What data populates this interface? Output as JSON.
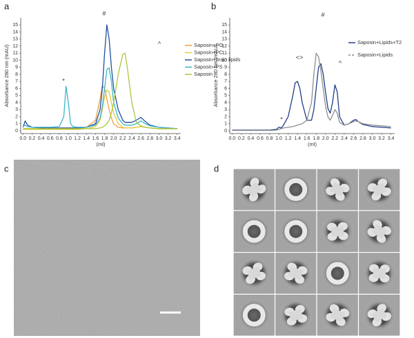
{
  "chart_data": [
    {
      "type": "line",
      "panel_label": "a",
      "ylabel": "Absorbance 280 nm (mAU)",
      "xlabel": "(ml)",
      "xlim": [
        -0.05,
        3.48
      ],
      "ylim": [
        0,
        15.6
      ],
      "xticks": [
        {
          "value": 0,
          "label": "0.0"
        },
        0.2,
        0.4,
        0.6,
        0.8,
        {
          "value": 1,
          "label": "1.0"
        },
        1.2,
        1.4,
        1.6,
        1.8,
        {
          "value": 2,
          "label": "2.0"
        },
        2.2,
        2.4,
        2.6,
        2.8,
        {
          "value": 3,
          "label": "3.0"
        },
        3.2,
        3.4
      ],
      "yticks": [
        0,
        1,
        2,
        3,
        4,
        5,
        6,
        7,
        8,
        9,
        10,
        11,
        12,
        13,
        14,
        15
      ],
      "annotations": [
        "*",
        "#",
        "^"
      ],
      "x": [
        0,
        0.05,
        0.1,
        0.2,
        0.4,
        0.6,
        0.8,
        0.9,
        0.95,
        1.0,
        1.05,
        1.1,
        1.2,
        1.4,
        1.6,
        1.7,
        1.75,
        1.8,
        1.85,
        1.9,
        1.95,
        2.0,
        2.1,
        2.2,
        2.25,
        2.3,
        2.4,
        2.5,
        2.6,
        2.7,
        2.8,
        3.0,
        3.2,
        3.4
      ],
      "series": [
        {
          "name": "Saposin+PG",
          "color": "#f0a040",
          "values": [
            0.3,
            0.3,
            0.3,
            0.3,
            0.3,
            0.3,
            0.3,
            0.3,
            0.3,
            0.3,
            0.3,
            0.3,
            0.3,
            0.5,
            1.5,
            4.5,
            6.4,
            6,
            4.5,
            3,
            1.8,
            1,
            0.5,
            0.4,
            0.4,
            0.4,
            0.4,
            0.5,
            0.6,
            0.5,
            0.4,
            0.3,
            0.3,
            0.3
          ]
        },
        {
          "name": "Saposin+PC",
          "color": "#e8c83c",
          "values": [
            0.2,
            0.2,
            0.2,
            0.2,
            0.2,
            0.2,
            0.2,
            0.2,
            0.2,
            0.2,
            0.2,
            0.2,
            0.2,
            0.3,
            0.6,
            1.5,
            3,
            4.8,
            5.8,
            5.5,
            4,
            2.5,
            1,
            0.5,
            0.4,
            0.4,
            0.4,
            0.5,
            0.6,
            0.5,
            0.4,
            0.3,
            0.3,
            0.3
          ]
        },
        {
          "name": "Saposin+brain lipids",
          "color": "#1f4e9c",
          "values": [
            0.5,
            1.4,
            0.8,
            0.5,
            0.4,
            0.4,
            0.4,
            0.4,
            0.4,
            0.4,
            0.4,
            0.4,
            0.4,
            0.5,
            1,
            3,
            6,
            11,
            15,
            13,
            9,
            6,
            3,
            1.5,
            1.2,
            1.2,
            1.2,
            1.5,
            1.9,
            1.3,
            0.8,
            0.5,
            0.4,
            0.3
          ]
        },
        {
          "name": "Saposin+PS",
          "color": "#3cb4c8",
          "values": [
            0.6,
            0.8,
            0.6,
            0.5,
            0.5,
            0.5,
            0.6,
            2,
            6.3,
            4,
            1,
            0.6,
            0.5,
            0.5,
            0.8,
            1.8,
            3.5,
            6,
            8.7,
            8.9,
            7,
            4,
            1.8,
            1,
            0.8,
            0.8,
            0.8,
            1,
            1.4,
            1,
            0.7,
            0.5,
            0.4,
            0.3
          ]
        },
        {
          "name": "Saposin",
          "color": "#a8c840",
          "values": [
            0.3,
            0.3,
            0.3,
            0.3,
            0.3,
            0.3,
            0.3,
            0.3,
            0.3,
            0.3,
            0.3,
            0.3,
            0.3,
            0.3,
            0.3,
            0.4,
            0.5,
            0.7,
            1,
            1.5,
            2.5,
            4,
            8,
            10.8,
            11,
            9,
            4,
            1.2,
            0.7,
            0.5,
            0.4,
            0.3,
            0.3,
            0.3
          ]
        }
      ]
    },
    {
      "type": "line",
      "panel_label": "b",
      "ylabel": "Absorbance 280 nm (mAU)",
      "xlabel": "(ml)",
      "xlim": [
        -0.05,
        3.48
      ],
      "ylim": [
        0,
        15.6
      ],
      "xticks": [
        {
          "value": 0,
          "label": "0.0"
        },
        0.2,
        0.4,
        0.6,
        0.8,
        {
          "value": 1,
          "label": "1.0"
        },
        1.2,
        1.4,
        1.6,
        1.8,
        {
          "value": 2,
          "label": "2.0"
        },
        2.2,
        2.4,
        2.6,
        2.8,
        {
          "value": 3,
          "label": "3.0"
        },
        3.2,
        3.4
      ],
      "yticks": [
        0,
        1,
        2,
        3,
        4,
        5,
        6,
        7,
        8,
        9,
        10,
        11,
        12,
        13,
        14,
        15
      ],
      "annotations": [
        "*",
        "<>",
        "#",
        "^"
      ],
      "x": [
        0,
        0.2,
        0.4,
        0.6,
        0.8,
        0.95,
        1.0,
        1.05,
        1.1,
        1.2,
        1.3,
        1.35,
        1.4,
        1.45,
        1.5,
        1.6,
        1.7,
        1.75,
        1.8,
        1.85,
        1.9,
        1.95,
        2.0,
        2.05,
        2.1,
        2.15,
        2.2,
        2.25,
        2.3,
        2.4,
        2.5,
        2.6,
        2.65,
        2.7,
        2.8,
        3.0,
        3.2,
        3.4
      ],
      "series": [
        {
          "name": "Saposin+Lipids+T2",
          "color": "#1f3c88",
          "values": [
            0.1,
            0.1,
            0.1,
            0.1,
            0.1,
            0.2,
            0.5,
            0.4,
            0.8,
            2,
            5,
            6.8,
            7,
            6,
            4,
            1.5,
            1.5,
            3,
            6,
            9,
            9.5,
            8,
            5.5,
            3.2,
            2.5,
            4,
            6.5,
            5.5,
            2,
            0.8,
            1,
            1.5,
            1.6,
            1.3,
            0.9,
            0.6,
            0.5,
            0.4
          ]
        },
        {
          "name": "Saposin+Lipids",
          "color": "#8c8c8c",
          "values": [
            0.05,
            0.05,
            0.05,
            0.05,
            0.05,
            0.1,
            0.2,
            0.3,
            0.4,
            0.5,
            0.6,
            0.7,
            0.8,
            0.9,
            1,
            1.5,
            4,
            8,
            11,
            10.5,
            8.5,
            6,
            3.5,
            2,
            1.5,
            2.2,
            3,
            2.5,
            1.2,
            0.8,
            1,
            1.3,
            1.4,
            1.3,
            1,
            0.8,
            0.7,
            0.6
          ]
        }
      ]
    }
  ],
  "images": [
    {
      "panel_label": "c"
    },
    {
      "panel_label": "d"
    }
  ]
}
